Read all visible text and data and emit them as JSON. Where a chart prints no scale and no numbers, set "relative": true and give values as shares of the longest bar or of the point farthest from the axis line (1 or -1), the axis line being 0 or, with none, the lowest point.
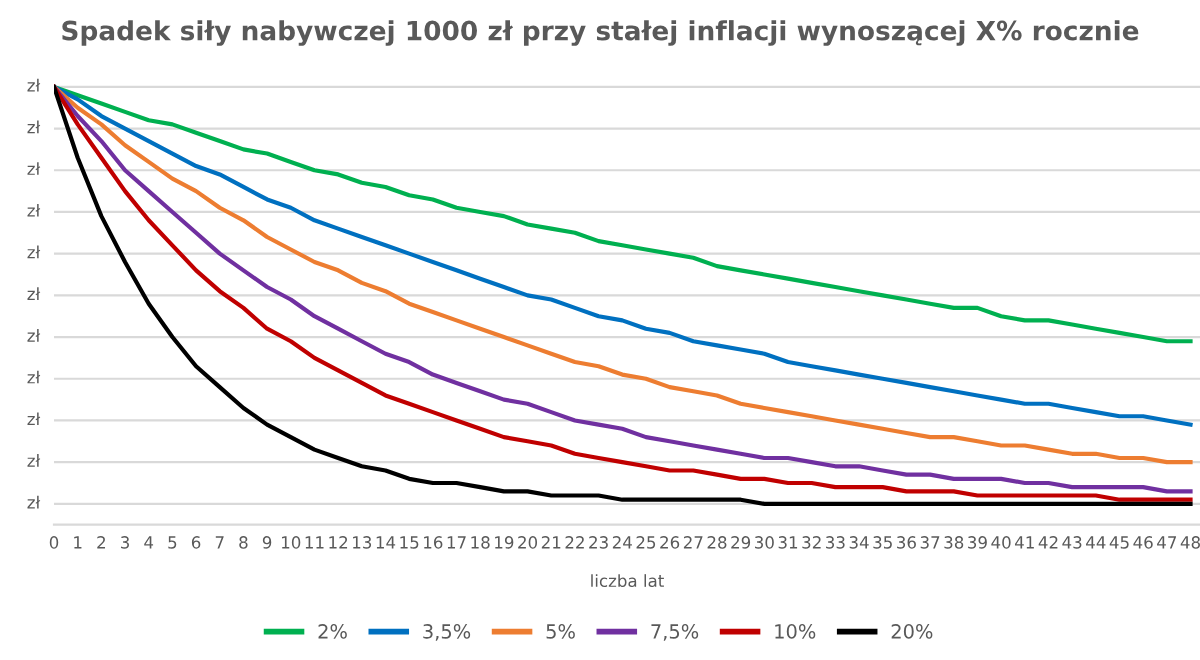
{
  "chart_data": {
    "type": "line",
    "title": "Spadek siły nabywczej 1000 zł przy stałej inflacji wynoszącej X% rocznie",
    "xlabel": "liczba lat",
    "relative": true,
    "annotations": [
      "zł",
      "zł",
      "zł",
      "zł",
      "zł",
      "zł",
      "zł",
      "zł",
      "zł",
      "zł",
      "zł"
    ],
    "categories": [
      "0",
      "1",
      "2",
      "3",
      "4",
      "5",
      "6",
      "7",
      "8",
      "9",
      "10",
      "11",
      "12",
      "13",
      "14",
      "15",
      "16",
      "17",
      "18",
      "19",
      "20",
      "21",
      "22",
      "23",
      "24",
      "25",
      "26",
      "27",
      "28",
      "29",
      "30",
      "31",
      "32",
      "33",
      "34",
      "35",
      "36",
      "37",
      "38",
      "39",
      "40",
      "41",
      "42",
      "43",
      "44",
      "45",
      "46",
      "47",
      "48"
    ],
    "grid": "y",
    "legend": "bottom",
    "marker": "none",
    "line_style": "solid",
    "series": [
      {
        "name": "2%",
        "color": "#00b050",
        "values": [
          1,
          0.98,
          0.96,
          0.94,
          0.92,
          0.91,
          0.89,
          0.87,
          0.85,
          0.84,
          0.82,
          0.8,
          0.79,
          0.77,
          0.76,
          0.74,
          0.73,
          0.71,
          0.7,
          0.69,
          0.67,
          0.66,
          0.65,
          0.63,
          0.62,
          0.61,
          0.6,
          0.59,
          0.57,
          0.56,
          0.55,
          0.54,
          0.53,
          0.52,
          0.51,
          0.5,
          0.49,
          0.48,
          0.47,
          0.47,
          0.45,
          0.44,
          0.44,
          0.43,
          0.42,
          0.41,
          0.4,
          0.39,
          0.39
        ]
      },
      {
        "name": "3,5%",
        "color": "#0070c0",
        "values": [
          1,
          0.97,
          0.93,
          0.9,
          0.87,
          0.84,
          0.81,
          0.79,
          0.76,
          0.73,
          0.71,
          0.68,
          0.66,
          0.64,
          0.62,
          0.6,
          0.58,
          0.56,
          0.54,
          0.52,
          0.5,
          0.49,
          0.47,
          0.45,
          0.44,
          0.42,
          0.41,
          0.39,
          0.38,
          0.37,
          0.36,
          0.34,
          0.33,
          0.32,
          0.31,
          0.3,
          0.29,
          0.28,
          0.27,
          0.26,
          0.25,
          0.24,
          0.24,
          0.23,
          0.22,
          0.21,
          0.21,
          0.2,
          0.19
        ]
      },
      {
        "name": "5%",
        "color": "#ed7d31",
        "values": [
          1,
          0.95,
          0.91,
          0.86,
          0.82,
          0.78,
          0.75,
          0.71,
          0.68,
          0.64,
          0.61,
          0.58,
          0.56,
          0.53,
          0.51,
          0.48,
          0.46,
          0.44,
          0.42,
          0.4,
          0.38,
          0.36,
          0.34,
          0.33,
          0.31,
          0.3,
          0.28,
          0.27,
          0.26,
          0.24,
          0.23,
          0.22,
          0.21,
          0.2,
          0.19,
          0.18,
          0.17,
          0.16,
          0.16,
          0.15,
          0.14,
          0.14,
          0.13,
          0.12,
          0.12,
          0.11,
          0.11,
          0.1,
          0.1
        ]
      },
      {
        "name": "7,5%",
        "color": "#7030a0",
        "values": [
          1,
          0.93,
          0.87,
          0.8,
          0.75,
          0.7,
          0.65,
          0.6,
          0.56,
          0.52,
          0.49,
          0.45,
          0.42,
          0.39,
          0.36,
          0.34,
          0.31,
          0.29,
          0.27,
          0.25,
          0.24,
          0.22,
          0.2,
          0.19,
          0.18,
          0.16,
          0.15,
          0.14,
          0.13,
          0.12,
          0.11,
          0.11,
          0.1,
          0.09,
          0.09,
          0.08,
          0.07,
          0.07,
          0.06,
          0.06,
          0.06,
          0.05,
          0.05,
          0.04,
          0.04,
          0.04,
          0.04,
          0.03,
          0.03
        ]
      },
      {
        "name": "10%",
        "color": "#c00000",
        "values": [
          1,
          0.91,
          0.83,
          0.75,
          0.68,
          0.62,
          0.56,
          0.51,
          0.47,
          0.42,
          0.39,
          0.35,
          0.32,
          0.29,
          0.26,
          0.24,
          0.22,
          0.2,
          0.18,
          0.16,
          0.15,
          0.14,
          0.12,
          0.11,
          0.1,
          0.09,
          0.08,
          0.08,
          0.07,
          0.06,
          0.06,
          0.05,
          0.05,
          0.04,
          0.04,
          0.04,
          0.03,
          0.03,
          0.03,
          0.02,
          0.02,
          0.02,
          0.02,
          0.02,
          0.02,
          0.01,
          0.01,
          0.01,
          0.01
        ]
      },
      {
        "name": "20%",
        "color": "#000000",
        "values": [
          1,
          0.83,
          0.69,
          0.58,
          0.48,
          0.4,
          0.33,
          0.28,
          0.23,
          0.19,
          0.16,
          0.13,
          0.11,
          0.09,
          0.08,
          0.06,
          0.05,
          0.05,
          0.04,
          0.03,
          0.03,
          0.02,
          0.02,
          0.02,
          0.01,
          0.01,
          0.01,
          0.01,
          0.01,
          0.01,
          0,
          0,
          0,
          0,
          0,
          0,
          0,
          0,
          0,
          0,
          0,
          0,
          0,
          0,
          0,
          0,
          0,
          0,
          0
        ]
      }
    ]
  }
}
